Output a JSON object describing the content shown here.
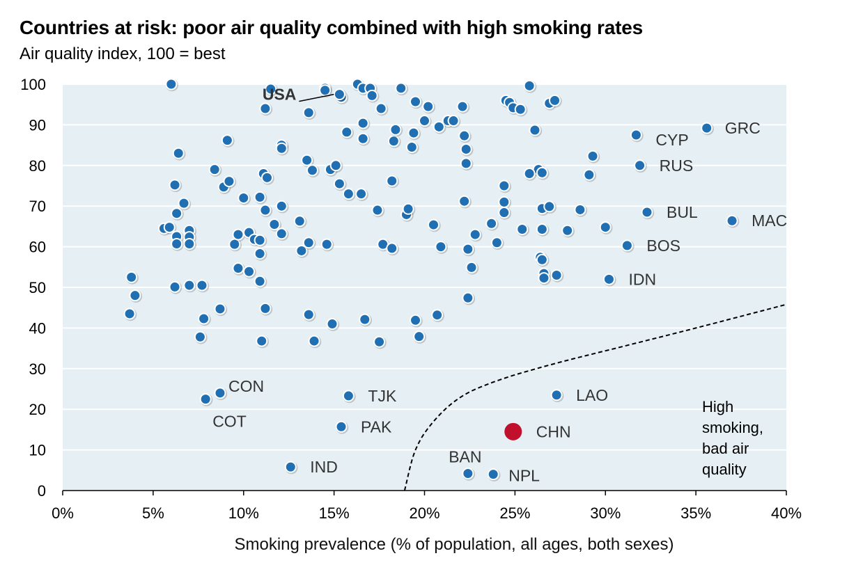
{
  "chart_data": {
    "type": "scatter",
    "title": "Countries at risk: poor air quality combined with high smoking rates",
    "subtitle": "Air quality index, 100 = best",
    "xlabel": "Smoking prevalence (% of population, all ages, both sexes)",
    "ylabel": "",
    "xlim": [
      0,
      40
    ],
    "ylim": [
      0,
      100
    ],
    "x_ticks": [
      "0%",
      "5%",
      "10%",
      "15%",
      "20%",
      "25%",
      "30%",
      "35%",
      "40%"
    ],
    "y_ticks": [
      "0",
      "10",
      "20",
      "30",
      "40",
      "50",
      "60",
      "70",
      "80",
      "90",
      "100"
    ],
    "grid": "horizontal",
    "colors": {
      "default_point": "#1f6fb2",
      "highlight_point": "#c0102c",
      "plot_background": "#e5eff4",
      "threshold_line": "#000000"
    },
    "threshold_curve": [
      [
        18.9,
        0
      ],
      [
        19.5,
        10
      ],
      [
        20.5,
        17
      ],
      [
        22,
        23
      ],
      [
        24,
        27
      ],
      [
        27,
        31
      ],
      [
        31,
        35.5
      ],
      [
        35,
        40
      ],
      [
        40,
        45.8
      ]
    ],
    "annotation_note": [
      "High",
      "smoking,",
      "bad air",
      "quality"
    ],
    "labeled_points": [
      {
        "label": "USA",
        "x": 15.3,
        "y": 97.5,
        "bold": true
      },
      {
        "label": "GRC",
        "x": 35.6,
        "y": 89.2
      },
      {
        "label": "CYP",
        "x": 31.7,
        "y": 87.5
      },
      {
        "label": "RUS",
        "x": 31.9,
        "y": 80
      },
      {
        "label": "BUL",
        "x": 32.3,
        "y": 68.5
      },
      {
        "label": "MAC",
        "x": 37,
        "y": 66.4
      },
      {
        "label": "BOS",
        "x": 31.2,
        "y": 60.3
      },
      {
        "label": "IDN",
        "x": 30.2,
        "y": 52
      },
      {
        "label": "CON",
        "x": 8.7,
        "y": 24
      },
      {
        "label": "COT",
        "x": 7.9,
        "y": 22.5
      },
      {
        "label": "TJK",
        "x": 15.8,
        "y": 23.3
      },
      {
        "label": "PAK",
        "x": 15.4,
        "y": 15.7
      },
      {
        "label": "IND",
        "x": 12.6,
        "y": 5.8
      },
      {
        "label": "LAO",
        "x": 27.3,
        "y": 23.5
      },
      {
        "label": "CHN",
        "x": 24.9,
        "y": 14.5,
        "highlight": true
      },
      {
        "label": "BAN",
        "x": 22.4,
        "y": 4.2
      },
      {
        "label": "NPL",
        "x": 23.8,
        "y": 4
      }
    ],
    "points": [
      [
        6,
        100
      ],
      [
        11.5,
        98.8
      ],
      [
        14.5,
        99
      ],
      [
        14.5,
        98.5
      ],
      [
        15.4,
        96.8
      ],
      [
        16.3,
        100
      ],
      [
        16.6,
        99
      ],
      [
        17,
        99
      ],
      [
        17.1,
        97.2
      ],
      [
        18.7,
        99
      ],
      [
        11.2,
        94
      ],
      [
        13.6,
        93
      ],
      [
        17.6,
        94
      ],
      [
        19.5,
        95.7
      ],
      [
        20,
        91
      ],
      [
        20.2,
        94.5
      ],
      [
        21.3,
        91
      ],
      [
        21.6,
        91
      ],
      [
        22.1,
        94.5
      ],
      [
        24.5,
        96
      ],
      [
        24.7,
        95.5
      ],
      [
        24.9,
        94.2
      ],
      [
        25.3,
        93.8
      ],
      [
        25.8,
        99.6
      ],
      [
        26.9,
        95.3
      ],
      [
        27.2,
        96
      ],
      [
        20.8,
        89.5
      ],
      [
        22.2,
        87.3
      ],
      [
        26.1,
        88.7
      ],
      [
        15.7,
        88.2
      ],
      [
        16.6,
        90.4
      ],
      [
        16.6,
        86.6
      ],
      [
        18.3,
        86
      ],
      [
        18.4,
        88.8
      ],
      [
        19.4,
        88
      ],
      [
        19.3,
        84.5
      ],
      [
        22.3,
        84
      ],
      [
        9.1,
        86.2
      ],
      [
        12.1,
        85
      ],
      [
        12.1,
        84.2
      ],
      [
        6.4,
        83
      ],
      [
        8.4,
        79
      ],
      [
        11.1,
        78
      ],
      [
        11.3,
        77
      ],
      [
        13.5,
        81.3
      ],
      [
        13.8,
        78.8
      ],
      [
        14.8,
        79
      ],
      [
        15.1,
        80
      ],
      [
        22.3,
        80.5
      ],
      [
        26.3,
        79
      ],
      [
        26.5,
        78.2
      ],
      [
        25.8,
        78
      ],
      [
        29.3,
        82.3
      ],
      [
        29.1,
        77.7
      ],
      [
        6.2,
        75.2
      ],
      [
        8.9,
        74.7
      ],
      [
        9.2,
        76.1
      ],
      [
        10,
        72
      ],
      [
        10.9,
        72.2
      ],
      [
        11.2,
        69
      ],
      [
        12.1,
        70
      ],
      [
        11.7,
        65.5
      ],
      [
        6.3,
        68.2
      ],
      [
        6.7,
        70.7
      ],
      [
        15.3,
        75.5
      ],
      [
        15.8,
        73
      ],
      [
        16.5,
        73
      ],
      [
        17.4,
        69
      ],
      [
        18.2,
        76.2
      ],
      [
        19,
        67.9
      ],
      [
        19.1,
        69.3
      ],
      [
        20.5,
        65.4
      ],
      [
        22.2,
        71.2
      ],
      [
        24.4,
        75
      ],
      [
        24.4,
        71
      ],
      [
        24.4,
        68.4
      ],
      [
        26.5,
        69.4
      ],
      [
        26.9,
        69.9
      ],
      [
        28.6,
        69.1
      ],
      [
        30,
        64.8
      ],
      [
        27.9,
        64
      ],
      [
        25.4,
        64.3
      ],
      [
        26.5,
        64.3
      ],
      [
        23.7,
        65.7
      ],
      [
        5.6,
        64.5
      ],
      [
        5.9,
        64.8
      ],
      [
        6.3,
        62.5
      ],
      [
        6.3,
        60.7
      ],
      [
        7,
        64
      ],
      [
        7,
        62.4
      ],
      [
        7,
        60.7
      ],
      [
        9.5,
        60.6
      ],
      [
        9.7,
        63
      ],
      [
        10.3,
        63.5
      ],
      [
        10.6,
        61.8
      ],
      [
        10.9,
        61.6
      ],
      [
        10.9,
        58.3
      ],
      [
        12.1,
        63.2
      ],
      [
        13.1,
        66.3
      ],
      [
        13.2,
        59
      ],
      [
        13.6,
        61
      ],
      [
        14.6,
        60.6
      ],
      [
        17.7,
        60.6
      ],
      [
        18.2,
        59.6
      ],
      [
        20.9,
        60
      ],
      [
        22.4,
        59.4
      ],
      [
        22.8,
        63
      ],
      [
        24,
        61
      ],
      [
        26.4,
        57.4
      ],
      [
        26.5,
        56.8
      ],
      [
        26.6,
        53.4
      ],
      [
        26.6,
        52.3
      ],
      [
        27.3,
        53
      ],
      [
        22.6,
        54.9
      ],
      [
        3.8,
        52.5
      ],
      [
        4,
        48
      ],
      [
        6.2,
        50.1
      ],
      [
        7,
        50.5
      ],
      [
        7.7,
        50.5
      ],
      [
        9.7,
        54.7
      ],
      [
        10.3,
        53.9
      ],
      [
        10.9,
        51.5
      ],
      [
        3.7,
        43.5
      ],
      [
        7.8,
        42.3
      ],
      [
        8.7,
        44.7
      ],
      [
        11.2,
        44.8
      ],
      [
        7.6,
        37.8
      ],
      [
        11,
        36.8
      ],
      [
        13.6,
        43.3
      ],
      [
        13.9,
        36.8
      ],
      [
        14.9,
        41
      ],
      [
        16.7,
        42.1
      ],
      [
        17.5,
        36.6
      ],
      [
        19.5,
        41.9
      ],
      [
        19.7,
        37.9
      ],
      [
        20.7,
        43.2
      ],
      [
        22.4,
        47.4
      ]
    ]
  }
}
